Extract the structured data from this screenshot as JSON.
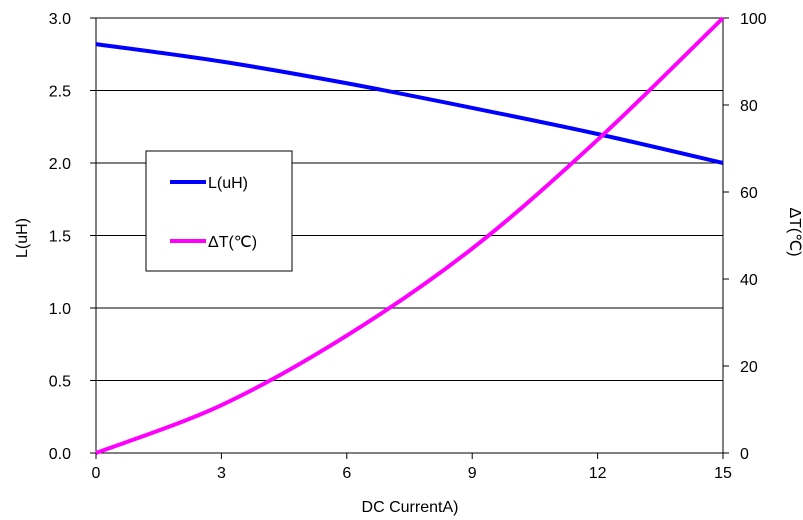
{
  "chart_data": {
    "type": "line",
    "xlabel": "DC CurrentA)",
    "ylabel_left": "L(uH)",
    "ylabel_right": "ΔT(℃)",
    "xlim": [
      0,
      15
    ],
    "ylim_left": [
      0,
      3.0
    ],
    "ylim_right": [
      0,
      100
    ],
    "x_ticks": [
      "0",
      "3",
      "6",
      "9",
      "12",
      "15"
    ],
    "y_left_ticks": [
      "0.0",
      "0.5",
      "1.0",
      "1.5",
      "2.0",
      "2.5",
      "3.0"
    ],
    "y_right_ticks": [
      "0",
      "20",
      "40",
      "60",
      "80",
      "100"
    ],
    "grid": "horizontal",
    "legend_position": "left-middle",
    "series": [
      {
        "name": "L(uH)",
        "axis": "left",
        "color": "#0000ff",
        "x": [
          0,
          3,
          6,
          9,
          12,
          15
        ],
        "y": [
          2.82,
          2.7,
          2.55,
          2.38,
          2.2,
          2.0
        ]
      },
      {
        "name": "ΔT(℃)",
        "axis": "right",
        "color": "#ff00ff",
        "x": [
          0,
          3,
          6,
          9,
          12,
          15
        ],
        "y": [
          0,
          11,
          27,
          47,
          72,
          100
        ]
      }
    ]
  }
}
